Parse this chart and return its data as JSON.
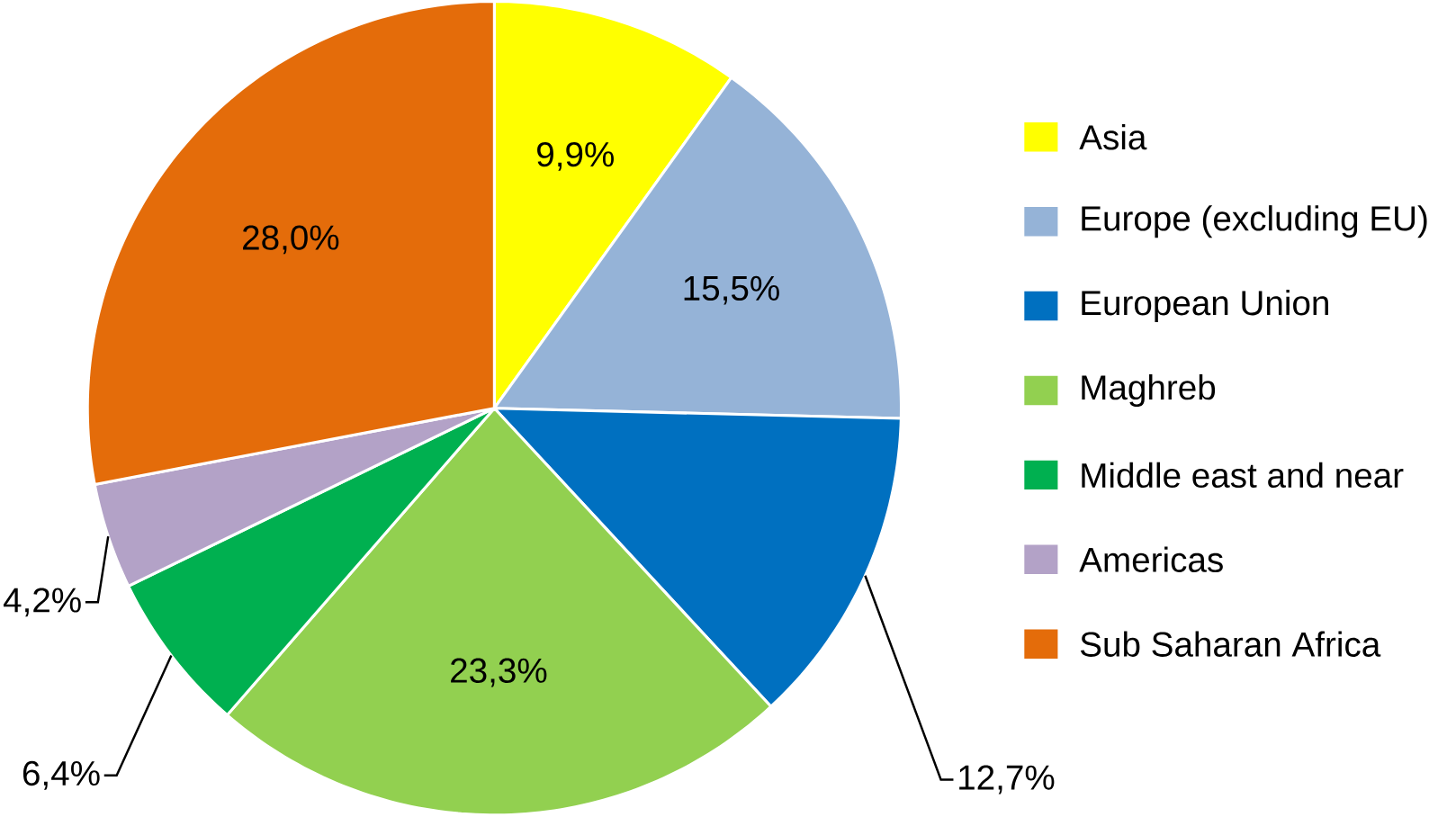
{
  "chart_data": {
    "type": "pie",
    "categories": [
      "Asia",
      "Europe (excluding EU)",
      "European Union",
      "Maghreb",
      "Middle east and near",
      "Americas",
      "Sub Saharan Africa"
    ],
    "values": [
      9.9,
      15.5,
      12.7,
      23.3,
      6.4,
      4.2,
      28.0
    ],
    "value_labels": [
      "9,9%",
      "15,5%",
      "12,7%",
      "23,3%",
      "6,4%",
      "4,2%",
      "28,0%"
    ],
    "colors": [
      "#ffff00",
      "#95b3d7",
      "#0070c0",
      "#92d050",
      "#00b050",
      "#b3a2c7",
      "#e46c0a"
    ],
    "legend": "right"
  }
}
